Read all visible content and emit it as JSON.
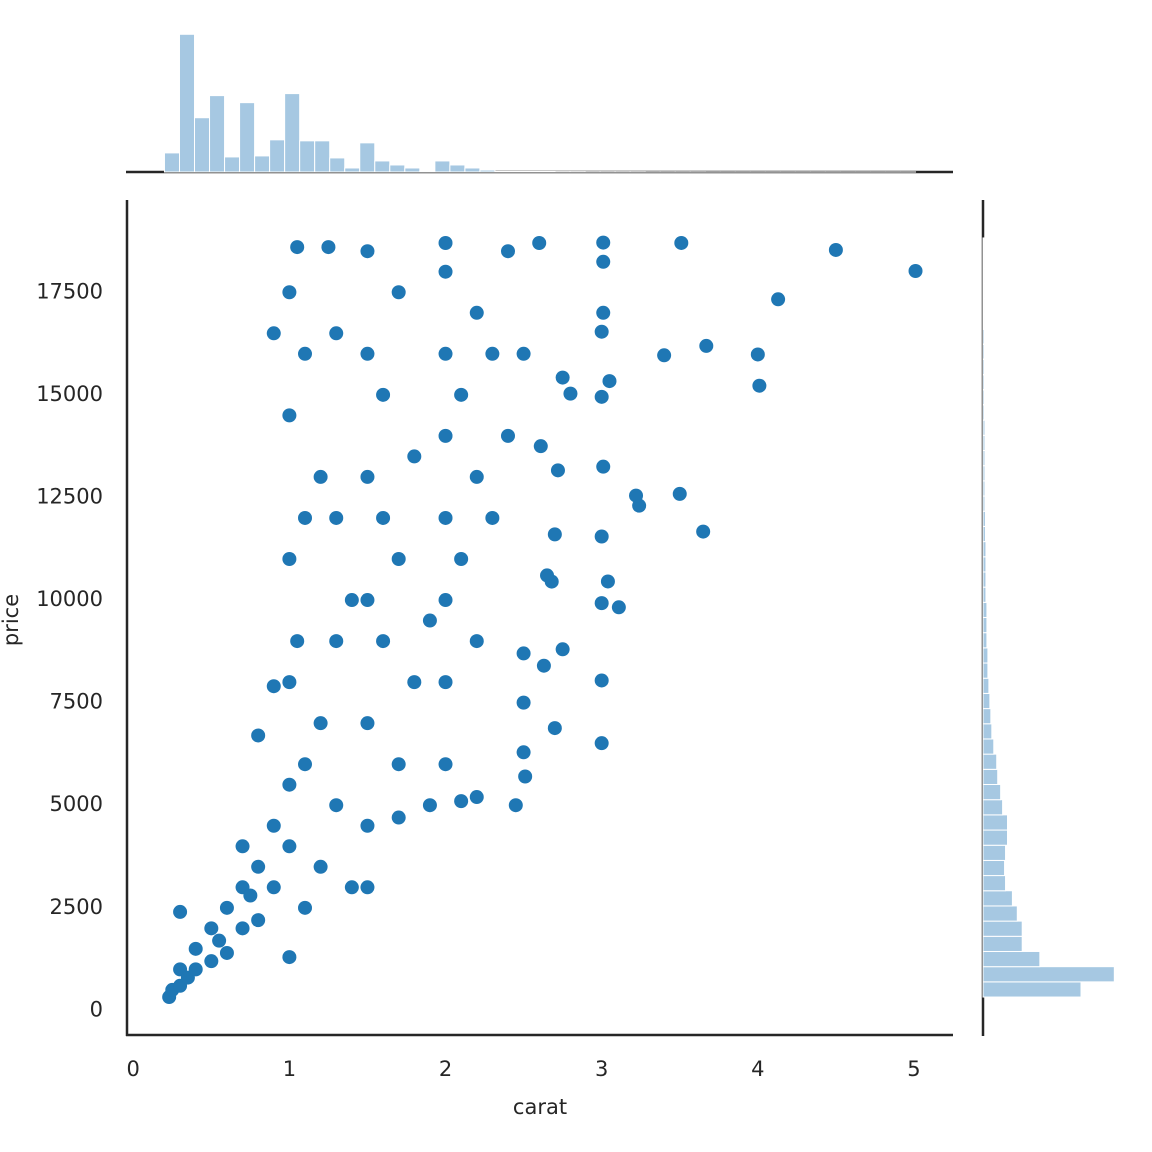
{
  "chart_data": [
    {
      "type": "scatter",
      "x_label": "carat",
      "y_label": "price",
      "color": "#1f77b4",
      "xlim": [
        -0.04,
        5.25
      ],
      "xticks": [
        0,
        1,
        2,
        3,
        4,
        5
      ],
      "ylim": [
        -599,
        19748
      ],
      "yticks": [
        0,
        2500,
        5000,
        7500,
        10000,
        12500,
        15000,
        17500
      ],
      "x": [
        5.01,
        4.5,
        4.13,
        4.01,
        4.0,
        3.67,
        3.65,
        3.51,
        3.5,
        3.4,
        3.24,
        3.22,
        3.11,
        3.04,
        3.01,
        3.01,
        3.0,
        3.0,
        3.01,
        3.0,
        3.0,
        3.0,
        3.0,
        3.05,
        3.01,
        2.8,
        2.75,
        2.72,
        2.7,
        2.75,
        2.7,
        2.68,
        2.65,
        2.63,
        2.61,
        2.5,
        2.5,
        2.5,
        2.51,
        2.45,
        2.2,
        2.1,
        0.23,
        0.25,
        0.3,
        0.3,
        0.35,
        0.4,
        0.4,
        0.5,
        0.5,
        0.55,
        0.6,
        0.6,
        0.7,
        0.7,
        0.7,
        0.75,
        0.8,
        0.8,
        0.9,
        0.9,
        0.9,
        1.0,
        1.0,
        1.0,
        1.0,
        1.0,
        1.0,
        1.05,
        1.1,
        1.1,
        1.1,
        1.2,
        1.2,
        1.2,
        1.3,
        1.3,
        1.3,
        1.4,
        1.4,
        1.5,
        1.5,
        1.5,
        1.5,
        1.5,
        1.5,
        1.5,
        1.6,
        1.6,
        1.6,
        1.7,
        1.7,
        1.7,
        1.8,
        1.8,
        1.9,
        1.9,
        2.0,
        2.0,
        2.0,
        2.0,
        2.0,
        2.0,
        2.0,
        2.0,
        2.1,
        2.1,
        2.2,
        2.2,
        2.2,
        2.3,
        2.3,
        2.4,
        2.4,
        2.5,
        2.6,
        1.25,
        1.05,
        0.9,
        0.8,
        1.3,
        1.1,
        1.0,
        0.3,
        1.7
      ],
      "y": [
        18018,
        18531,
        17329,
        15223,
        15984,
        16193,
        11668,
        18701,
        12587,
        15964,
        12300,
        12545,
        9823,
        10453,
        18710,
        18242,
        16538,
        14952,
        13250,
        11548,
        9925,
        8040,
        6512,
        15335,
        17000,
        15030,
        15420,
        13160,
        11600,
        8800,
        6880,
        10450,
        10600,
        8400,
        13750,
        6290,
        8700,
        7500,
        5700,
        5000,
        5200,
        5100,
        326,
        500,
        600,
        1000,
        800,
        1000,
        1500,
        1200,
        2000,
        1700,
        2500,
        1400,
        2000,
        3000,
        4000,
        2800,
        3500,
        2200,
        3000,
        4500,
        7900,
        4000,
        5500,
        8000,
        11000,
        14500,
        17500,
        9000,
        6000,
        12000,
        16000,
        7000,
        13000,
        3500,
        9000,
        16500,
        5000,
        10000,
        3000,
        4500,
        7000,
        10000,
        13000,
        16000,
        18500,
        3000,
        9000,
        12000,
        15000,
        6000,
        11000,
        17500,
        8000,
        13500,
        5000,
        9500,
        6000,
        8000,
        10000,
        12000,
        14000,
        16000,
        18000,
        18700,
        11000,
        15000,
        9000,
        13000,
        17000,
        12000,
        16000,
        14000,
        18500,
        16000,
        18700,
        18600,
        18600,
        16500,
        6700,
        12000,
        2500,
        1300,
        2400,
        4700
      ]
    },
    {
      "type": "histogram",
      "orientation": "vertical",
      "color": "#a6c8e2",
      "ylim": [
        0,
        11700
      ],
      "bins": [
        0.2,
        0.2962,
        0.3924,
        0.4886,
        0.5848,
        0.681,
        0.7772,
        0.8734,
        0.9696,
        1.0658,
        1.162,
        1.2582,
        1.3544,
        1.4506,
        1.5468,
        1.643,
        1.7392,
        1.8354,
        1.9316,
        2.0278,
        2.124,
        2.2202,
        2.3164,
        2.4126,
        2.5088,
        2.605,
        2.7012,
        2.7974,
        2.8936,
        2.9898,
        3.086,
        3.1822,
        3.2784,
        3.3746,
        3.4708,
        3.567,
        3.6632,
        3.7594,
        3.8556,
        3.9518,
        4.048,
        4.1442,
        4.2404,
        4.3366,
        4.4328,
        4.529,
        4.6252,
        4.7214,
        4.8176,
        4.9138,
        5.01
      ],
      "values": [
        1520,
        10960,
        4320,
        6080,
        1200,
        5520,
        1280,
        2560,
        6240,
        2480,
        2480,
        1120,
        320,
        2320,
        880,
        560,
        320,
        80,
        880,
        560,
        320,
        160,
        40,
        40,
        40,
        40,
        30,
        30,
        20,
        20,
        20,
        20,
        10,
        10,
        10,
        10,
        5,
        5,
        5,
        5,
        5,
        5,
        5,
        5,
        5,
        3,
        3,
        3,
        3,
        3
      ]
    },
    {
      "type": "histogram",
      "orientation": "horizontal",
      "color": "#a6c8e2",
      "xlim": [
        0,
        10500
      ],
      "bins": [
        326,
        696,
        1066,
        1436,
        1806,
        2176,
        2546,
        2916,
        3286,
        3655,
        4025,
        4395,
        4765,
        5135,
        5505,
        5875,
        6245,
        6615,
        6985,
        7355,
        7725,
        8095,
        8465,
        8835,
        9205,
        9575,
        9944,
        10314,
        10684,
        11054,
        11424,
        11794,
        12164,
        12534,
        12904,
        13274,
        13644,
        14014,
        14384,
        14754,
        15124,
        15494,
        15864,
        16234,
        16603,
        16973,
        17343,
        17713,
        18083,
        18453,
        18823
      ],
      "values": [
        7000,
        9380,
        4060,
        2800,
        2800,
        2450,
        2100,
        1610,
        1540,
        1610,
        1750,
        1750,
        1400,
        1260,
        1050,
        980,
        770,
        630,
        560,
        490,
        420,
        350,
        350,
        280,
        280,
        280,
        210,
        210,
        210,
        210,
        175,
        175,
        140,
        140,
        140,
        140,
        140,
        140,
        105,
        105,
        105,
        105,
        105,
        105,
        70,
        70,
        70,
        70,
        70,
        70
      ]
    }
  ]
}
